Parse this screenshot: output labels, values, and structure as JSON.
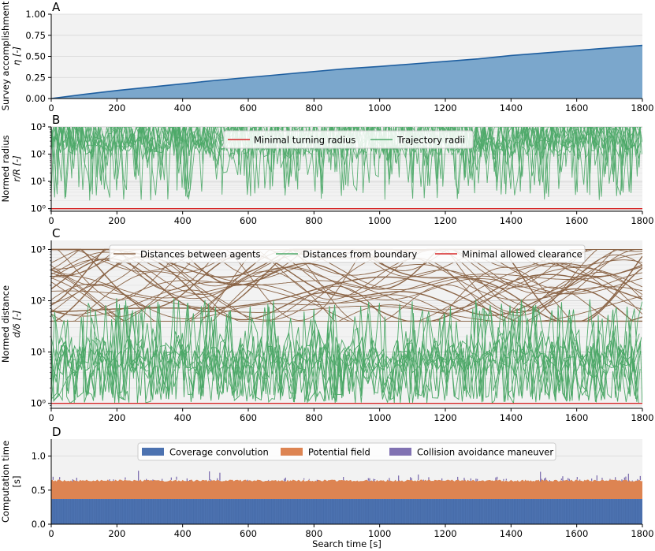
{
  "chart_data": [
    {
      "panel": "A",
      "type": "area",
      "ylabel_lines": [
        "Survey accomplishment",
        "η [-]"
      ],
      "xlim": [
        0,
        1800
      ],
      "ylim": [
        0,
        1.0
      ],
      "xticks": [
        "0",
        "200",
        "400",
        "600",
        "800",
        "1000",
        "1200",
        "1400",
        "1600",
        "1800"
      ],
      "yticks": [
        "0.00",
        "0.25",
        "0.50",
        "0.75",
        "1.00"
      ],
      "series": [
        {
          "name": "Survey accomplishment",
          "x": [
            0,
            100,
            200,
            300,
            400,
            500,
            600,
            700,
            800,
            900,
            1000,
            1100,
            1200,
            1300,
            1400,
            1500,
            1600,
            1700,
            1800
          ],
          "y": [
            0.0,
            0.05,
            0.095,
            0.135,
            0.175,
            0.215,
            0.25,
            0.285,
            0.32,
            0.355,
            0.38,
            0.41,
            0.44,
            0.47,
            0.51,
            0.54,
            0.57,
            0.6,
            0.63
          ]
        }
      ],
      "colors": {
        "line": "#1f5fa0",
        "fill": "#7ba7cc"
      }
    },
    {
      "panel": "B",
      "type": "line",
      "yscale": "log",
      "ylabel_lines": [
        "Normed radius",
        "r/R [-]"
      ],
      "xlim": [
        0,
        1800
      ],
      "ylim": [
        0.8,
        1000
      ],
      "xticks": [
        "0",
        "200",
        "400",
        "600",
        "800",
        "1000",
        "1200",
        "1400",
        "1600",
        "1800"
      ],
      "yticks": [
        "10⁰",
        "10¹",
        "10²",
        "10³"
      ],
      "legend": [
        "Minimal turning radius",
        "Trajectory radii"
      ],
      "minimal_turning_radius": 1,
      "trajectory_radii_range": [
        1.5,
        1000
      ],
      "colors": {
        "minimum": "#d62728",
        "trajectory": "#4da868"
      }
    },
    {
      "panel": "C",
      "type": "line",
      "yscale": "log",
      "ylabel_lines": [
        "Normed distance",
        "d/δ [-]"
      ],
      "xlim": [
        0,
        1800
      ],
      "ylim": [
        0.8,
        1500
      ],
      "xticks": [
        "0",
        "200",
        "400",
        "600",
        "800",
        "1000",
        "1200",
        "1400",
        "1600",
        "1800"
      ],
      "yticks": [
        "10⁰",
        "10¹",
        "10²",
        "10³"
      ],
      "legend": [
        "Distances between agents",
        "Distances from boundary",
        "Minimal allowed clearance"
      ],
      "minimal_allowed_clearance": 1,
      "agent_distance_range": [
        40,
        1000
      ],
      "boundary_distance_range": [
        1,
        120
      ],
      "colors": {
        "agents": "#8b6547",
        "boundary": "#4da868",
        "clearance": "#d62728"
      }
    },
    {
      "panel": "D",
      "type": "bar",
      "stacked": true,
      "ylabel_lines": [
        "Computation time",
        "[s]"
      ],
      "xlabel": "Search time [s]",
      "xlim": [
        0,
        1800
      ],
      "ylim": [
        0,
        1.25
      ],
      "xticks": [
        "0",
        "200",
        "400",
        "600",
        "800",
        "1000",
        "1200",
        "1400",
        "1600",
        "1800"
      ],
      "yticks": [
        "0.0",
        "0.5",
        "1.0"
      ],
      "legend": [
        "Coverage convolution",
        "Potential field",
        "Collision avoidance maneuver"
      ],
      "series": [
        {
          "name": "Coverage convolution",
          "typical_value": 0.37
        },
        {
          "name": "Potential field",
          "typical_value": 0.27
        },
        {
          "name": "Collision avoidance maneuver",
          "typical_value": 0.03,
          "max_value": 0.14
        }
      ],
      "colors": {
        "coverage": "#4c72b0",
        "potential": "#dd8452",
        "collision": "#8172b2"
      }
    }
  ],
  "panel_letters": [
    "A",
    "B",
    "C",
    "D"
  ]
}
